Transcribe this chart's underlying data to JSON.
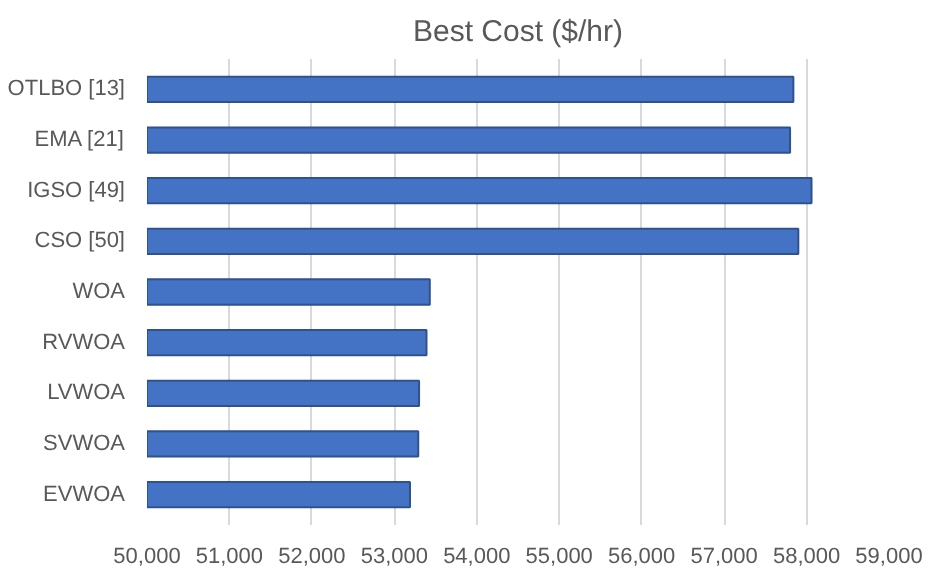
{
  "chart_data": {
    "type": "bar",
    "orientation": "horizontal",
    "title": "Best Cost ($/hr)",
    "categories": [
      "OTLBO [13]",
      "EMA [21]",
      "IGSO [49]",
      "CSO [50]",
      "WOA",
      "RVWOA",
      "LVWOA",
      "SVWOA",
      "EVWOA"
    ],
    "values": [
      57840,
      57800,
      58060,
      57900,
      53430,
      53390,
      53300,
      53290,
      53190
    ],
    "color": "#4472c4",
    "xlim": [
      50000,
      59000
    ],
    "xticks": [
      {
        "value": 50000,
        "label": "50,000"
      },
      {
        "value": 51000,
        "label": "51,000"
      },
      {
        "value": 52000,
        "label": "52,000"
      },
      {
        "value": 53000,
        "label": "53,000"
      },
      {
        "value": 54000,
        "label": "54,000"
      },
      {
        "value": 55000,
        "label": "55,000"
      },
      {
        "value": 56000,
        "label": "56,000"
      },
      {
        "value": 57000,
        "label": "57,000"
      },
      {
        "value": 58000,
        "label": "58,000"
      },
      {
        "value": 59000,
        "label": "59,000"
      }
    ],
    "grid": "x"
  }
}
